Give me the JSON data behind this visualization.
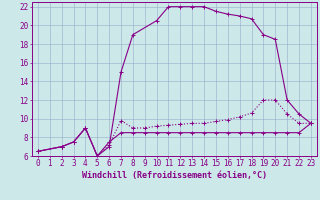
{
  "bg_color": "#cce8e8",
  "line_color": "#880088",
  "grid_color": "#99aacc",
  "xlabel": "Windchill (Refroidissement éolien,°C)",
  "xlim": [
    -0.5,
    23.5
  ],
  "ylim": [
    6,
    22.5
  ],
  "yticks": [
    6,
    8,
    10,
    12,
    14,
    16,
    18,
    20,
    22
  ],
  "xticks": [
    0,
    1,
    2,
    3,
    4,
    5,
    6,
    7,
    8,
    9,
    10,
    11,
    12,
    13,
    14,
    15,
    16,
    17,
    18,
    19,
    20,
    21,
    22,
    23
  ],
  "line1_x": [
    0,
    2,
    3,
    4,
    5,
    6,
    7,
    8,
    10,
    11,
    12,
    13,
    14,
    15,
    16,
    17,
    18,
    19,
    20,
    21,
    22,
    23
  ],
  "line1_y": [
    6.5,
    7.0,
    7.5,
    9.0,
    6.0,
    7.0,
    15.0,
    19.0,
    20.5,
    22.0,
    22.0,
    22.0,
    22.0,
    21.5,
    21.2,
    21.0,
    20.7,
    19.0,
    18.5,
    12.0,
    10.5,
    9.5
  ],
  "line2_x": [
    0,
    2,
    3,
    4,
    5,
    6,
    7,
    8,
    9,
    10,
    11,
    12,
    13,
    14,
    15,
    16,
    17,
    18,
    19,
    20,
    21,
    22,
    23
  ],
  "line2_y": [
    6.5,
    7.0,
    7.5,
    9.0,
    6.0,
    7.2,
    9.8,
    9.0,
    9.0,
    9.2,
    9.3,
    9.4,
    9.5,
    9.5,
    9.7,
    9.9,
    10.2,
    10.6,
    12.0,
    12.0,
    10.5,
    9.5,
    9.5
  ],
  "line3_x": [
    0,
    2,
    3,
    4,
    5,
    6,
    7,
    8,
    9,
    10,
    11,
    12,
    13,
    14,
    15,
    16,
    17,
    18,
    19,
    20,
    21,
    22,
    23
  ],
  "line3_y": [
    6.5,
    7.0,
    7.5,
    9.0,
    6.0,
    7.5,
    8.5,
    8.5,
    8.5,
    8.5,
    8.5,
    8.5,
    8.5,
    8.5,
    8.5,
    8.5,
    8.5,
    8.5,
    8.5,
    8.5,
    8.5,
    8.5,
    9.5
  ],
  "font_size": 5.5,
  "lw": 0.8,
  "ms": 2.5
}
